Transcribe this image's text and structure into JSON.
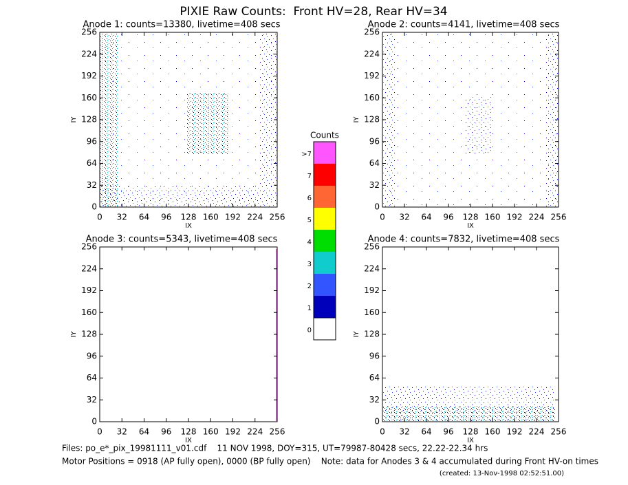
{
  "title": "PIXIE Raw Counts:  Front HV=28, Rear HV=34",
  "chart_data": [
    {
      "type": "heatmap",
      "title": "Anode 1: counts=13380, livetime=408 secs",
      "xlabel": "IX",
      "ylabel": "IY",
      "xlim": [
        0,
        256
      ],
      "ylim": [
        0,
        256
      ],
      "xticks": [
        0,
        32,
        64,
        96,
        128,
        160,
        192,
        224,
        256
      ],
      "yticks": [
        0,
        32,
        64,
        96,
        128,
        160,
        192,
        224,
        256
      ]
    },
    {
      "type": "heatmap",
      "title": "Anode 2: counts=4141, livetime=408 secs",
      "xlabel": "IX",
      "ylabel": "IY",
      "xlim": [
        0,
        256
      ],
      "ylim": [
        0,
        256
      ],
      "xticks": [
        0,
        32,
        64,
        96,
        128,
        160,
        192,
        224,
        256
      ],
      "yticks": [
        0,
        32,
        64,
        96,
        128,
        160,
        192,
        224,
        256
      ]
    },
    {
      "type": "heatmap",
      "title": "Anode 3: counts=5343, livetime=408 secs",
      "xlabel": "IX",
      "ylabel": "IY",
      "xlim": [
        0,
        256
      ],
      "ylim": [
        0,
        256
      ],
      "xticks": [
        0,
        32,
        64,
        96,
        128,
        160,
        192,
        224,
        256
      ],
      "yticks": [
        0,
        32,
        64,
        96,
        128,
        160,
        192,
        224,
        256
      ]
    },
    {
      "type": "heatmap",
      "title": "Anode 4: counts=7832, livetime=408 secs",
      "xlabel": "IX",
      "ylabel": "IY",
      "xlim": [
        0,
        256
      ],
      "ylim": [
        0,
        256
      ],
      "xticks": [
        0,
        32,
        64,
        96,
        128,
        160,
        192,
        224,
        256
      ],
      "yticks": [
        0,
        32,
        64,
        96,
        128,
        160,
        192,
        224,
        256
      ]
    }
  ],
  "colorbar": {
    "title": "Counts",
    "labels": [
      ">7",
      "7",
      "6",
      "5",
      "4",
      "3",
      "2",
      "1",
      "0"
    ],
    "colors": [
      "#ff55ff",
      "#ff0000",
      "#ff6633",
      "#ffff00",
      "#00dd00",
      "#11cccc",
      "#3355ff",
      "#0000bb",
      "#ffffff"
    ]
  },
  "footer": {
    "files": "Files: po_e*_pix_19981111_v01.cdf    11 NOV 1998, DOY=315, UT=79987-80428 secs, 22.22-22.34 hrs",
    "motor": "Motor Positions = 0918 (AP fully open), 0000 (BP fully open)    Note: data for Anodes 3 & 4 accumulated during Front HV-on times",
    "created": "(created: 13-Nov-1998 02:52:51.00)"
  }
}
